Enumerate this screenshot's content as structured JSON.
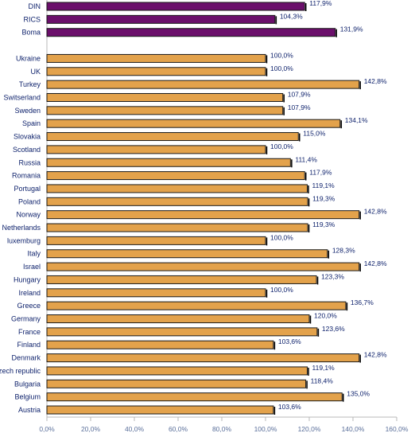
{
  "chart_data": {
    "type": "bar",
    "orientation": "horizontal",
    "categories": [
      "DIN",
      "RICS",
      "Boma",
      "",
      "Ukraine",
      "UK",
      "Turkey",
      "Switserland",
      "Sweden",
      "Spain",
      "Slovakia",
      "Scotland",
      "Russia",
      "Romania",
      "Portugal",
      "Poland",
      "Norway",
      "Netherlands",
      "luxemburg",
      "Italy",
      "Israel",
      "Hungary",
      "Ireland",
      "Greece",
      "Germany",
      "France",
      "Finland",
      "Denmark",
      "Czech republic",
      "Bulgaria",
      "Belgium",
      "Austria"
    ],
    "values": [
      117.9,
      104.3,
      131.9,
      null,
      100.0,
      100.0,
      142.8,
      107.9,
      107.9,
      134.1,
      115.0,
      100.0,
      111.4,
      117.9,
      119.1,
      119.3,
      142.8,
      119.3,
      100.0,
      128.3,
      142.8,
      123.3,
      100.0,
      136.7,
      120.0,
      123.6,
      103.6,
      142.8,
      119.1,
      118.4,
      135.0,
      103.6
    ],
    "value_labels": [
      "117,9%",
      "104,3%",
      "131,9%",
      "",
      "100,0%",
      "100,0%",
      "142,8%",
      "107,9%",
      "107,9%",
      "134,1%",
      "115,0%",
      "100,0%",
      "111,4%",
      "117,9%",
      "119,1%",
      "119,3%",
      "142,8%",
      "119,3%",
      "100,0%",
      "128,3%",
      "142,8%",
      "123,3%",
      "100,0%",
      "136,7%",
      "120,0%",
      "123,6%",
      "103,6%",
      "142,8%",
      "119,1%",
      "118,4%",
      "135,0%",
      "103,6%"
    ],
    "bar_colors": [
      "#6b0f6b",
      "#6b0f6b",
      "#6b0f6b",
      "",
      "#e3a24b",
      "#e3a24b",
      "#e3a24b",
      "#e3a24b",
      "#e3a24b",
      "#e3a24b",
      "#e3a24b",
      "#e3a24b",
      "#e3a24b",
      "#e3a24b",
      "#e3a24b",
      "#e3a24b",
      "#e3a24b",
      "#e3a24b",
      "#e3a24b",
      "#e3a24b",
      "#e3a24b",
      "#e3a24b",
      "#e3a24b",
      "#e3a24b",
      "#e3a24b",
      "#e3a24b",
      "#e3a24b",
      "#e3a24b",
      "#e3a24b",
      "#e3a24b",
      "#e3a24b",
      "#e3a24b"
    ],
    "x_ticks": [
      0,
      20,
      40,
      60,
      80,
      100,
      120,
      140,
      160
    ],
    "x_tick_labels": [
      "0,0%",
      "20,0%",
      "40,0%",
      "60,0%",
      "80,0%",
      "100,0%",
      "120,0%",
      "140,0%",
      "160,0%"
    ],
    "xlim": [
      0,
      160
    ],
    "title": "",
    "xlabel": "",
    "ylabel": "",
    "grid": false,
    "legend": false
  },
  "colors": {
    "label_text": "#0b1f6a",
    "tick_text": "#5a6f9a",
    "axis": "#b8b8b8",
    "bar_border": "#1a1a1a"
  }
}
